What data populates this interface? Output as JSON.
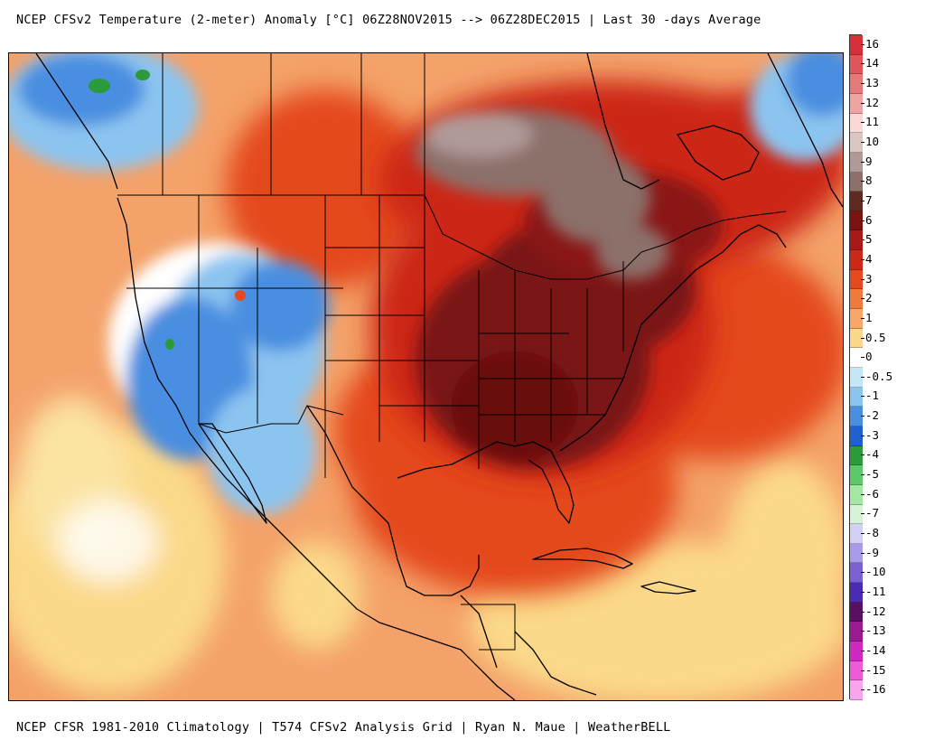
{
  "title": "NCEP CFSv2 Temperature (2-meter) Anomaly  [°C] 06Z28NOV2015 --> 06Z28DEC2015 | Last 30 -days Average",
  "footer": "NCEP CFSR 1981-2010 Climatology | T574 CFSv2 Analysis Grid | Ryan N. Maue | WeatherBELL",
  "colors": {
    "ocean_warm": "#f4a26a",
    "cool_west": "#5a9ae0",
    "pale_yellow": "#fbe3a2",
    "hot_core": "#6a0a0a",
    "brown_max": "#7e5a52",
    "orange_red": "#e44a1e"
  },
  "legend": {
    "items": [
      {
        "label": "16",
        "color": "#d8303a"
      },
      {
        "label": "14",
        "color": "#e0545a"
      },
      {
        "label": "13",
        "color": "#e8797b"
      },
      {
        "label": "12",
        "color": "#f0a3a3"
      },
      {
        "label": "11",
        "color": "#f8d8d8"
      },
      {
        "label": "10",
        "color": "#d9c5c2"
      },
      {
        "label": "9",
        "color": "#b09a96"
      },
      {
        "label": "8",
        "color": "#8c706a"
      },
      {
        "label": "7",
        "color": "#5e2a22"
      },
      {
        "label": "6",
        "color": "#7a1212"
      },
      {
        "label": "5",
        "color": "#a81818"
      },
      {
        "label": "4",
        "color": "#cc2818"
      },
      {
        "label": "3",
        "color": "#e44a1e"
      },
      {
        "label": "2",
        "color": "#f07a3c"
      },
      {
        "label": "1",
        "color": "#f7a868"
      },
      {
        "label": "0.5",
        "color": "#fbd98a"
      },
      {
        "label": "0",
        "color": "#ffffff"
      },
      {
        "label": "-0.5",
        "color": "#c4e6f6"
      },
      {
        "label": "-1",
        "color": "#8cc4f0"
      },
      {
        "label": "-2",
        "color": "#4a8ee0"
      },
      {
        "label": "-3",
        "color": "#1f5fd0"
      },
      {
        "label": "-4",
        "color": "#2a9a3a"
      },
      {
        "label": "-5",
        "color": "#5cc86a"
      },
      {
        "label": "-6",
        "color": "#a4e6a4"
      },
      {
        "label": "-7",
        "color": "#d8f2d8"
      },
      {
        "label": "-8",
        "color": "#d4d0f4"
      },
      {
        "label": "-9",
        "color": "#a89ce8"
      },
      {
        "label": "-10",
        "color": "#7a62d4"
      },
      {
        "label": "-11",
        "color": "#4a2ab0"
      },
      {
        "label": "-12",
        "color": "#5a1060"
      },
      {
        "label": "-13",
        "color": "#9a1a92"
      },
      {
        "label": "-14",
        "color": "#d028c0"
      },
      {
        "label": "-15",
        "color": "#ee5ad8"
      },
      {
        "label": "-16",
        "color": "#f8a6ec"
      }
    ]
  }
}
